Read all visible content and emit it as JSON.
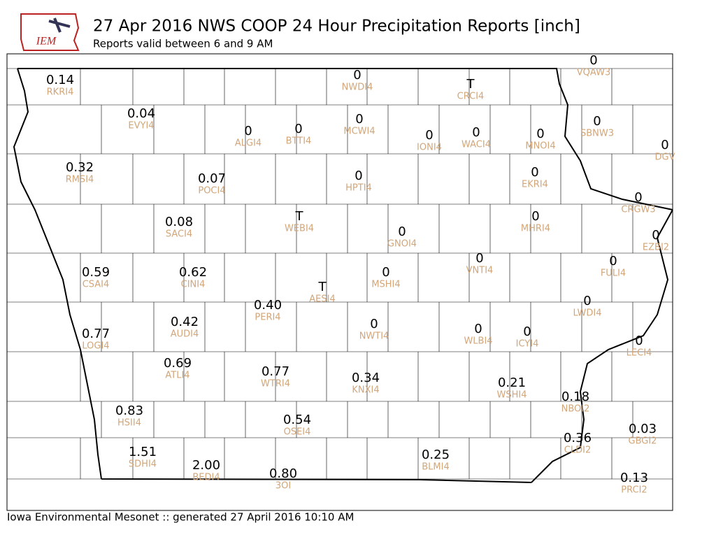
{
  "header": {
    "logo": "IEM",
    "title": "27 Apr 2016 NWS COOP 24 Hour Precipitation Reports [inch]",
    "subtitle": "Reports valid between 6 and 9 AM"
  },
  "footer": "Iowa Environmental Mesonet :: generated 27 April 2016 10:10 AM",
  "stations": [
    {
      "value": "0.14",
      "id": "RKRI4"
    },
    {
      "value": "0.04",
      "id": "EVYI4"
    },
    {
      "value": "0",
      "id": "ALGI4"
    },
    {
      "value": "0",
      "id": "BTTI4"
    },
    {
      "value": "0",
      "id": "NWDI4"
    },
    {
      "value": "0",
      "id": "MCWI4"
    },
    {
      "value": "T",
      "id": "CRCI4"
    },
    {
      "value": "0",
      "id": "IONI4"
    },
    {
      "value": "0",
      "id": "WACI4"
    },
    {
      "value": "0",
      "id": "MNOI4"
    },
    {
      "value": "0",
      "id": "VQAW3"
    },
    {
      "value": "0",
      "id": "SBNW3"
    },
    {
      "value": "0",
      "id": "DGV"
    },
    {
      "value": "0.32",
      "id": "RMSI4"
    },
    {
      "value": "0.07",
      "id": "POCI4"
    },
    {
      "value": "0",
      "id": "HPTI4"
    },
    {
      "value": "0",
      "id": "EKRI4"
    },
    {
      "value": "0",
      "id": "CRGW3"
    },
    {
      "value": "0.08",
      "id": "SACI4"
    },
    {
      "value": "T",
      "id": "WEBI4"
    },
    {
      "value": "0",
      "id": "GNOI4"
    },
    {
      "value": "0",
      "id": "MHRI4"
    },
    {
      "value": "0",
      "id": "EZBI2"
    },
    {
      "value": "0.59",
      "id": "CSAI4"
    },
    {
      "value": "0.62",
      "id": "CINI4"
    },
    {
      "value": "0",
      "id": "VNTI4"
    },
    {
      "value": "0",
      "id": "FULI4"
    },
    {
      "value": "0",
      "id": "MSHI4"
    },
    {
      "value": "T",
      "id": "AESI4"
    },
    {
      "value": "0.40",
      "id": "PERI4"
    },
    {
      "value": "0",
      "id": "LWDI4"
    },
    {
      "value": "0.77",
      "id": "LOGI4"
    },
    {
      "value": "0.42",
      "id": "AUDI4"
    },
    {
      "value": "0",
      "id": "NWTI4"
    },
    {
      "value": "0",
      "id": "WLBI4"
    },
    {
      "value": "0",
      "id": "ICYI4"
    },
    {
      "value": "0",
      "id": "LECI4"
    },
    {
      "value": "0.69",
      "id": "ATLI4"
    },
    {
      "value": "0.77",
      "id": "WTRI4"
    },
    {
      "value": "0.34",
      "id": "KNXI4"
    },
    {
      "value": "0.21",
      "id": "WSHI4"
    },
    {
      "value": "0.18",
      "id": "NBOI2"
    },
    {
      "value": "0.83",
      "id": "HSII4"
    },
    {
      "value": "0.54",
      "id": "OSEI4"
    },
    {
      "value": "0.03",
      "id": "GBGI2"
    },
    {
      "value": "0.36",
      "id": "CLDI2"
    },
    {
      "value": "1.51",
      "id": "SDHI4"
    },
    {
      "value": "0.25",
      "id": "BLMI4"
    },
    {
      "value": "2.00",
      "id": "BEDI4"
    },
    {
      "value": "0.80",
      "id": "3OI"
    },
    {
      "value": "0.13",
      "id": "PRCI2"
    }
  ]
}
